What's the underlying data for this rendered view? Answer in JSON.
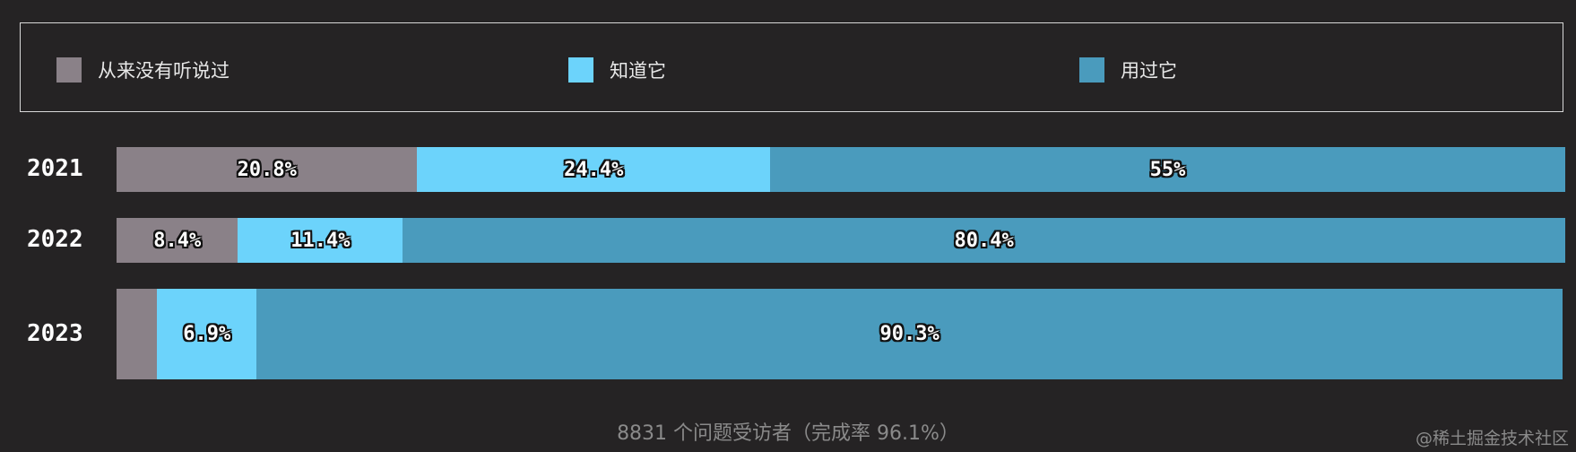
{
  "chart_data": {
    "type": "bar",
    "orientation": "horizontal-stacked",
    "categories": [
      "2021",
      "2022",
      "2023"
    ],
    "series": [
      {
        "name": "从来没有听说过",
        "color": "#8a8188",
        "values": [
          20.8,
          8.4,
          2.8
        ],
        "labels": [
          "20.8%",
          "8.4%",
          ""
        ]
      },
      {
        "name": "知道它",
        "color": "#6cd3fb",
        "values": [
          24.4,
          11.4,
          6.9
        ],
        "labels": [
          "24.4%",
          "11.4%",
          "6.9%"
        ]
      },
      {
        "name": "用过它",
        "color": "#4a9bbd",
        "values": [
          55,
          80.4,
          90.3
        ],
        "labels": [
          "55%",
          "80.4%",
          "90.3%"
        ]
      }
    ],
    "legend": "top",
    "xlim": [
      0,
      100.2
    ]
  },
  "footer": "8831 个问题受访者（完成率 96.1%）",
  "watermark": "@稀土掘金技术社区"
}
